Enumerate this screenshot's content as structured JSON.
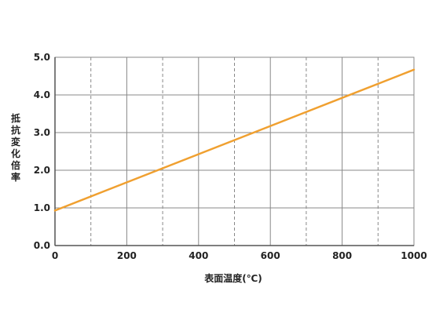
{
  "chart_data": {
    "type": "line",
    "xlabel": "表面温度(℃)",
    "ylabel": "抵抗変化倍率",
    "xlim": [
      0,
      1000
    ],
    "ylim": [
      0.0,
      5.0
    ],
    "x_ticks": [
      0,
      200,
      400,
      600,
      800,
      1000
    ],
    "x_tick_labels": [
      "0",
      "200",
      "400",
      "600",
      "800",
      "1000"
    ],
    "y_ticks": [
      0.0,
      1.0,
      2.0,
      3.0,
      4.0,
      5.0
    ],
    "y_tick_labels": [
      "0.0",
      "1.0",
      "2.0",
      "3.0",
      "4.0",
      "5.0"
    ],
    "x_minor_dashed": [
      100,
      300,
      500,
      700,
      900
    ],
    "grid": true,
    "line_color": "#f0a030",
    "grid_color": "#888888",
    "series": [
      {
        "x": [
          0,
          1000
        ],
        "y": [
          0.93,
          4.67
        ]
      }
    ]
  }
}
